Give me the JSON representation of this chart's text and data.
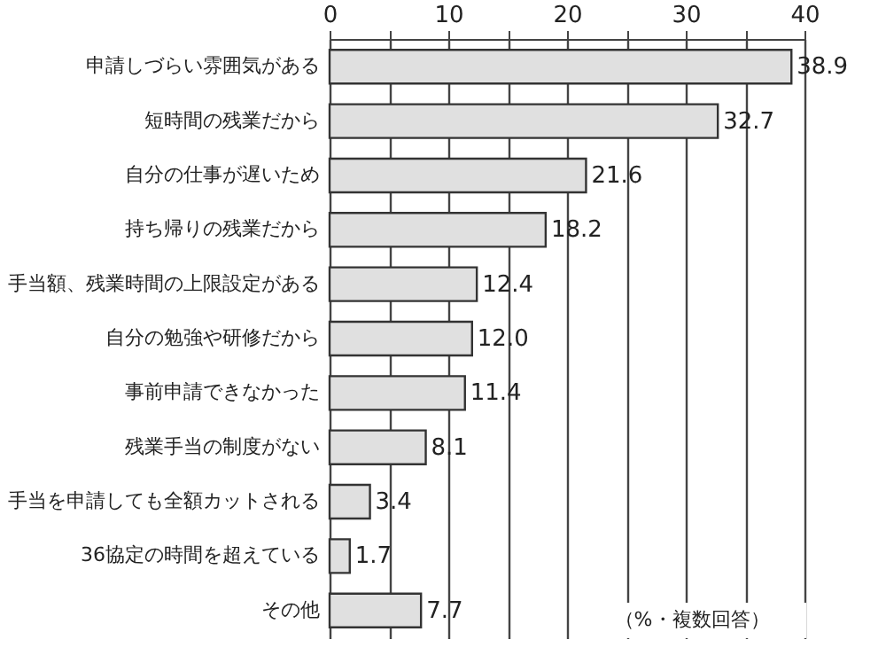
{
  "chart_data": {
    "type": "bar",
    "orientation": "horizontal",
    "categories": [
      "申請しづらい雰囲気がある",
      "短時間の残業だから",
      "自分の仕事が遅いため",
      "持ち帰りの残業だから",
      "手当額、残業時間の上限設定がある",
      "自分の勉強や研修だから",
      "事前申請できなかった",
      "残業手当の制度がない",
      "手当を申請しても全額カットされる",
      "36協定の時間を超えている",
      "その他"
    ],
    "values": [
      38.9,
      32.7,
      21.6,
      18.2,
      12.4,
      12.0,
      11.4,
      8.1,
      3.4,
      1.7,
      7.7
    ],
    "value_labels": [
      "38.9",
      "32.7",
      "21.6",
      "18.2",
      "12.4",
      "12.0",
      "11.4",
      "8.1",
      "3.4",
      "1.7",
      "7.7"
    ],
    "color": "#e0e0e0",
    "xlim": [
      0,
      40
    ],
    "xticks": [
      0,
      {
        "value": 5,
        "label": null
      },
      10,
      {
        "value": 15,
        "label": null
      },
      20,
      {
        "value": 25,
        "label": null
      },
      30,
      {
        "value": 35,
        "label": null
      },
      40
    ],
    "grid": "x",
    "annotations": [
      "（%・複数回答）"
    ]
  }
}
